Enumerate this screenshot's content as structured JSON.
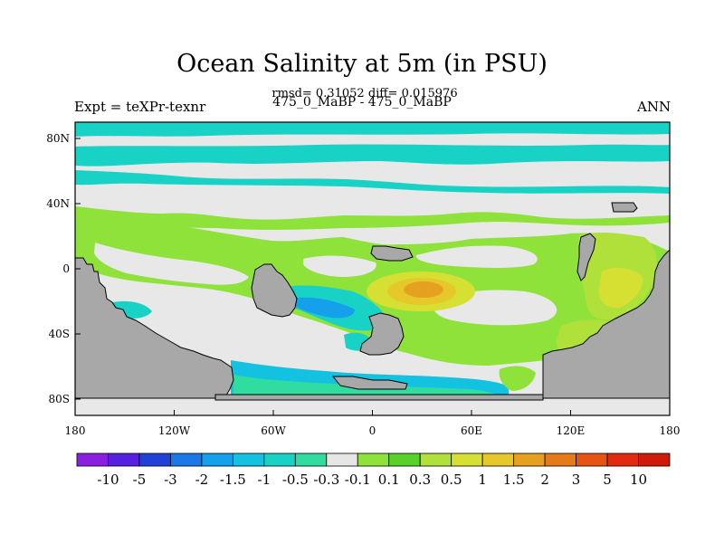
{
  "title": "Ocean Salinity at 5m (in PSU)",
  "stats_line": "rmsd= 0.31052 diff= 0.015976",
  "left_label": "Expt = teXPr-texnr",
  "center_label": "475_0_MaBP - 475_0_MaBP",
  "right_label": "ANN",
  "map": {
    "lon_range": [
      -180,
      180
    ],
    "lat_range": [
      -90,
      90
    ],
    "x_ticks": [
      "180",
      "120W",
      "60W",
      "0",
      "60E",
      "120E",
      "180"
    ],
    "y_ticks": [
      "80N",
      "40N",
      "0",
      "40S",
      "80S"
    ]
  },
  "colorbar": {
    "labels": [
      "-10",
      "-5",
      "-3",
      "-2",
      "-1.5",
      "-1",
      "-0.5",
      "-0.3",
      "-0.1",
      "0.1",
      "0.3",
      "0.5",
      "1",
      "1.5",
      "2",
      "3",
      "5",
      "10"
    ],
    "colors": [
      "#8a1fe0",
      "#5520e0",
      "#2040d8",
      "#1c78e6",
      "#14a0ea",
      "#12c2e0",
      "#18d2c6",
      "#30dca0",
      "#e6e6e6",
      "#8ee23a",
      "#58d22a",
      "#b0e03a",
      "#d6e032",
      "#e6c82a",
      "#e6a020",
      "#e67a18",
      "#e65414",
      "#e22a10",
      "#d01a0a"
    ]
  }
}
